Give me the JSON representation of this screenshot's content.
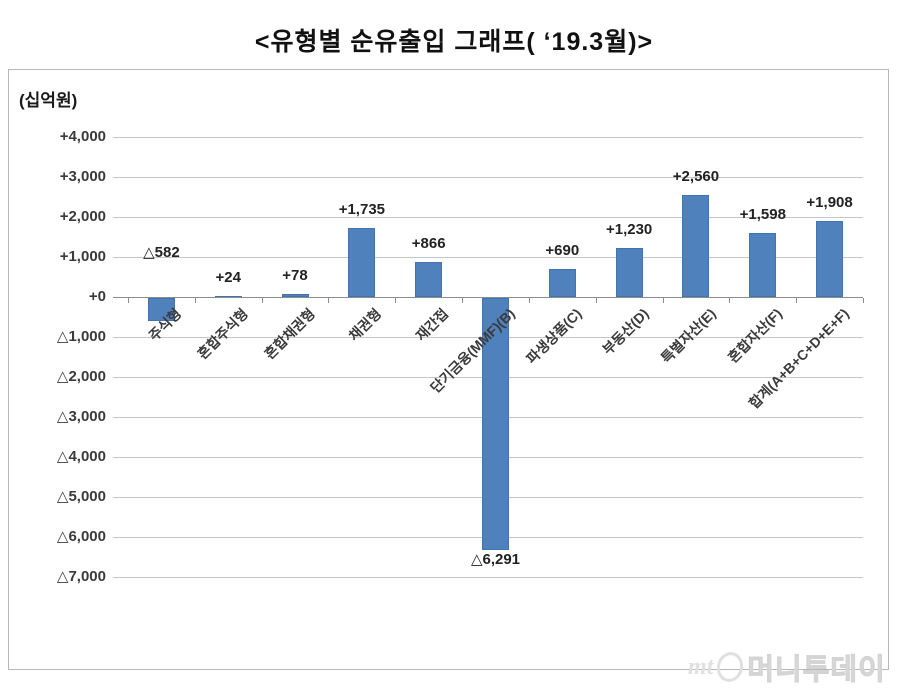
{
  "title": "<유형별 순유출입 그래프( ‘19.3월)>",
  "unit_label": "(십억원)",
  "watermark": {
    "mt": "mt",
    "brand": "머니투데이"
  },
  "chart_data": {
    "type": "bar",
    "title": "유형별 순유출입 그래프 ‘19.3월",
    "ylabel": "(십억원)",
    "xlabel": "",
    "categories": [
      "주식형",
      "혼합주식형",
      "혼합채권형",
      "채권형",
      "재간접",
      "단기금융(MMF)(B)",
      "파생상품(C)",
      "부동산(D)",
      "특별자산(E)",
      "혼합자산(F)",
      "합계(A+B+C+D+E+F)"
    ],
    "values": [
      -582,
      24,
      78,
      1735,
      866,
      -6291,
      690,
      1230,
      2560,
      1598,
      1908
    ],
    "data_labels": [
      "△582",
      "+24",
      "+78",
      "+1,735",
      "+866",
      "△6,291",
      "+690",
      "+1,230",
      "+2,560",
      "+1,598",
      "+1,908"
    ],
    "y_tick_labels": [
      "+4,000",
      "+3,000",
      "+2,000",
      "+1,000",
      "+0",
      "△1,000",
      "△2,000",
      "△3,000",
      "△4,000",
      "△5,000",
      "△6,000",
      "△7,000"
    ],
    "y_tick_values": [
      4000,
      3000,
      2000,
      1000,
      0,
      -1000,
      -2000,
      -3000,
      -4000,
      -5000,
      -6000,
      -7000
    ],
    "ylim": [
      -7000,
      4000
    ],
    "bar_color": "#4f81bd",
    "grid": true,
    "legend": false
  }
}
